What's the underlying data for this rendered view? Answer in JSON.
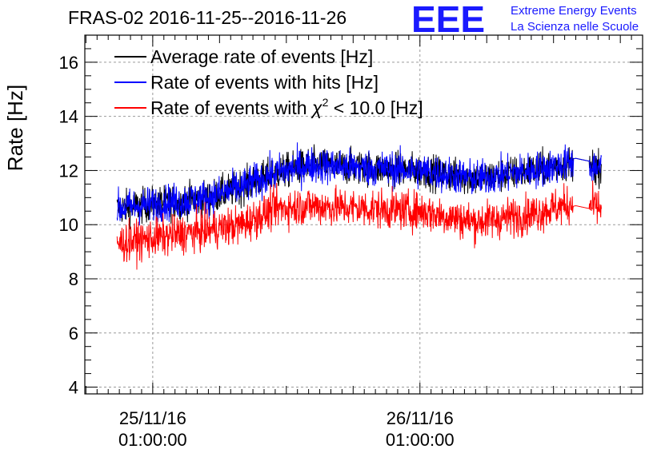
{
  "chart_data": {
    "type": "line",
    "title": "FRAS-02 2016-11-25--2016-11-26",
    "ylabel": "Rate [Hz]",
    "xlabel": "",
    "ylim": [
      3.75,
      17
    ],
    "y_ticks": [
      4,
      6,
      8,
      10,
      12,
      14,
      16
    ],
    "x_ticks": [
      {
        "label_date": "25/11/16",
        "label_time": "01:00:00",
        "hours": 0
      },
      {
        "label_date": "26/11/16",
        "label_time": "01:00:00",
        "hours": 24
      }
    ],
    "xlim_hours": [
      -6.1,
      44
    ],
    "data_range_hours": [
      -3.2,
      40.3
    ],
    "grid": true,
    "legend_position": "top-left",
    "series": [
      {
        "name": "Average rate of events [Hz]",
        "color": "#000000",
        "trend": [
          [
            -3.2,
            10.6
          ],
          [
            5,
            11.0
          ],
          [
            8,
            11.4
          ],
          [
            11,
            11.9
          ],
          [
            14,
            12.2
          ],
          [
            19,
            12.1
          ],
          [
            24,
            12.0
          ],
          [
            29,
            11.7
          ],
          [
            34,
            12.0
          ],
          [
            38,
            12.3
          ],
          [
            40.3,
            12.1
          ]
        ],
        "noise": 0.4
      },
      {
        "name": "Rate of events with hits [Hz]",
        "color": "#0000ff",
        "trend": [
          [
            -3.2,
            10.6
          ],
          [
            5,
            11.0
          ],
          [
            8,
            11.4
          ],
          [
            11,
            11.9
          ],
          [
            14,
            12.2
          ],
          [
            19,
            12.1
          ],
          [
            24,
            12.0
          ],
          [
            29,
            11.7
          ],
          [
            34,
            12.0
          ],
          [
            38,
            12.3
          ],
          [
            40.3,
            12.1
          ]
        ],
        "noise": 0.42
      },
      {
        "name": "Rate of events with χ² < 10.0 [Hz]",
        "color": "#ff0000",
        "trend": [
          [
            -3.2,
            9.3
          ],
          [
            5,
            9.8
          ],
          [
            8,
            10.0
          ],
          [
            11,
            10.6
          ],
          [
            14,
            10.7
          ],
          [
            19,
            10.6
          ],
          [
            24,
            10.5
          ],
          [
            29,
            10.1
          ],
          [
            34,
            10.4
          ],
          [
            38,
            10.8
          ],
          [
            40.3,
            10.6
          ]
        ],
        "noise": 0.45
      }
    ]
  },
  "logo": {
    "mark": "EEE",
    "line1": "Extreme Energy Events",
    "line2": "La Scienza nelle Scuole",
    "color": "#1a1aff"
  },
  "legend": {
    "item1_prefix": "Average rate of events [Hz]",
    "item2_prefix": "Rate of events with hits [Hz]",
    "item3_prefix": "Rate of events with ",
    "item3_chi": "χ",
    "item3_sup": "2",
    "item3_suffix": " < 10.0 [Hz]"
  }
}
